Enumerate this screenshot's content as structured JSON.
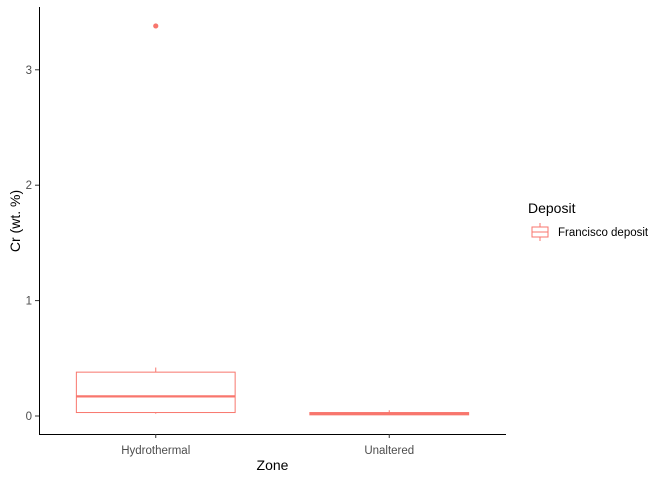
{
  "chart_data": {
    "type": "boxplot",
    "xlabel": "Zone",
    "ylabel": "Cr (wt. %)",
    "categories": [
      "Hydrothermal",
      "Unaltered"
    ],
    "ylim": [
      -0.17,
      3.55
    ],
    "yticks": [
      0,
      1,
      2,
      3
    ],
    "grid": false,
    "legend": {
      "title": "Deposit",
      "position": "right",
      "entries": [
        "Francisco deposit"
      ]
    },
    "series": [
      {
        "name": "Francisco deposit",
        "color": "#F8766D",
        "boxes": [
          {
            "category": "Hydrothermal",
            "min": 0.02,
            "q1": 0.03,
            "median": 0.17,
            "q3": 0.38,
            "max": 0.42,
            "outliers": [
              3.38
            ]
          },
          {
            "category": "Unaltered",
            "min": 0.01,
            "q1": 0.01,
            "median": 0.02,
            "q3": 0.03,
            "max": 0.05,
            "outliers": []
          }
        ]
      }
    ]
  }
}
